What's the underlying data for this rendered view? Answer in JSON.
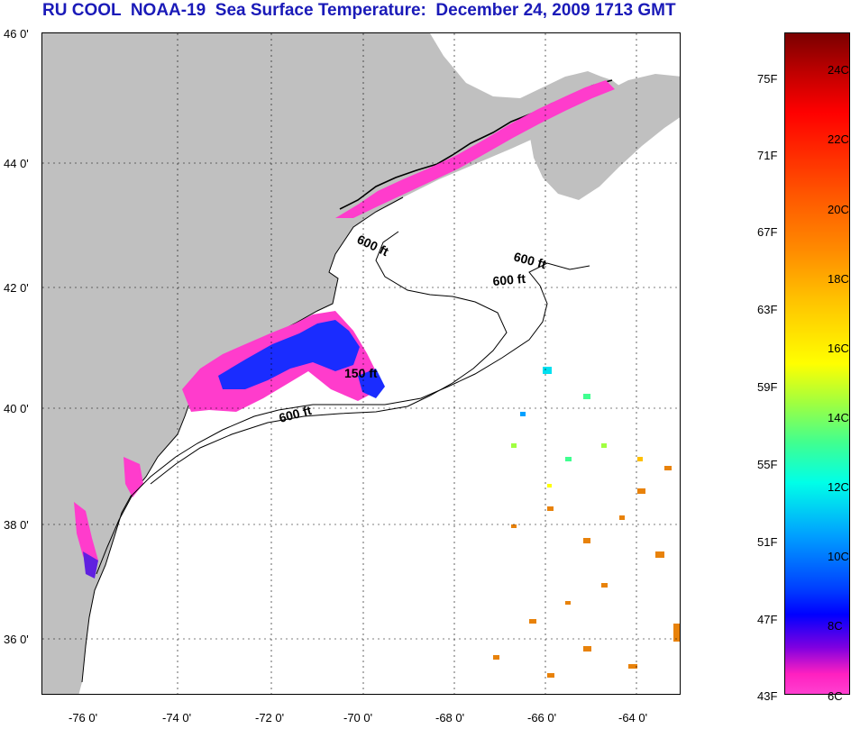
{
  "title": "RU COOL  NOAA-19  Sea Surface Temperature:  December 24, 2009 1713 GMT",
  "map": {
    "lat_labels": [
      "46 0'",
      "44 0'",
      "42 0'",
      "40 0'",
      "38 0'",
      "36 0'"
    ],
    "lon_labels": [
      "-76 0'",
      "-74 0'",
      "-72 0'",
      "-70 0'",
      "-68 0'",
      "-66 0'",
      "-64 0'"
    ],
    "contour_labels": [
      "600 ft",
      "600 ft",
      "600 ft",
      "150 ft",
      "600 ft"
    ]
  },
  "colorbar": {
    "fahrenheit": [
      "75F",
      "71F",
      "67F",
      "63F",
      "59F",
      "55F",
      "51F",
      "47F",
      "43F"
    ],
    "celsius": [
      "24C",
      "22C",
      "20C",
      "18C",
      "16C",
      "14C",
      "12C",
      "10C",
      "8C",
      "6C"
    ]
  },
  "colors": {
    "title": "#1a1ab8",
    "land": "#c0c0c0",
    "cold_pink": "#ff3ccc",
    "cool_blue": "#1a2cff",
    "warm_orange": "#e8820a"
  }
}
